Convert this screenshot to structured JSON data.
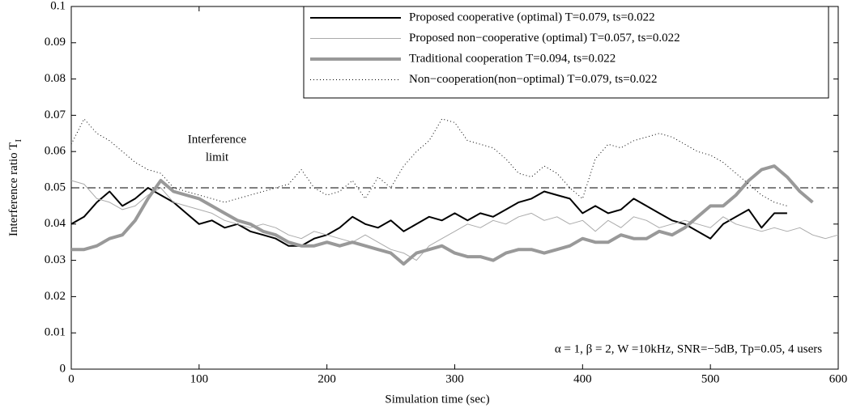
{
  "chart_data": {
    "type": "line",
    "xlabel": "Simulation time (sec)",
    "ylabel": "Interference ratio T",
    "ylabel_subscript": "I",
    "x": [
      0,
      10,
      20,
      30,
      40,
      50,
      60,
      70,
      80,
      90,
      100,
      110,
      120,
      130,
      140,
      150,
      160,
      170,
      180,
      190,
      200,
      210,
      220,
      230,
      240,
      250,
      260,
      270,
      280,
      290,
      300,
      310,
      320,
      330,
      340,
      350,
      360,
      370,
      380,
      390,
      400,
      410,
      420,
      430,
      440,
      450,
      460,
      470,
      480,
      490,
      500,
      510,
      520,
      530,
      540,
      550,
      560,
      570,
      580,
      590,
      600
    ],
    "xlim": [
      0,
      600
    ],
    "xticks": [
      0,
      100,
      200,
      300,
      400,
      500,
      600
    ],
    "ylim": [
      0,
      0.1
    ],
    "yticks": [
      0,
      0.01,
      0.02,
      0.03,
      0.04,
      0.05,
      0.06,
      0.07,
      0.08,
      0.09,
      0.1
    ],
    "limit": 0.05,
    "annotation": [
      "Interference",
      "limit"
    ],
    "params": "α = 1, β = 2, W =10kHz, SNR=−5dB, Tp=0.05, 4 users",
    "series": [
      {
        "name": "Proposed cooperative (optimal) T=0.079, ts=0.022",
        "color": "#000000",
        "style": "solid",
        "width": 2,
        "values": [
          0.04,
          0.042,
          0.046,
          0.049,
          0.045,
          0.047,
          0.05,
          0.048,
          0.046,
          0.043,
          0.04,
          0.041,
          0.039,
          0.04,
          0.038,
          0.037,
          0.036,
          0.034,
          0.034,
          0.036,
          0.037,
          0.039,
          0.042,
          0.04,
          0.039,
          0.041,
          0.038,
          0.04,
          0.042,
          0.041,
          0.043,
          0.041,
          0.043,
          0.042,
          0.044,
          0.046,
          0.047,
          0.049,
          0.048,
          0.047,
          0.043,
          0.045,
          0.043,
          0.044,
          0.047,
          0.045,
          0.043,
          0.041,
          0.04,
          0.038,
          0.036,
          0.04,
          0.042,
          0.044,
          0.039,
          0.043,
          0.043,
          null,
          null,
          null,
          null
        ]
      },
      {
        "name": "Proposed non−cooperative (optimal) T=0.057, ts=0.022",
        "color": "#aaaaaa",
        "style": "solid",
        "width": 1,
        "values": [
          0.052,
          0.051,
          0.047,
          0.046,
          0.044,
          0.045,
          0.048,
          0.05,
          0.046,
          0.045,
          0.044,
          0.043,
          0.041,
          0.04,
          0.039,
          0.04,
          0.039,
          0.037,
          0.036,
          0.038,
          0.037,
          0.036,
          0.035,
          0.037,
          0.035,
          0.033,
          0.032,
          0.03,
          0.034,
          0.036,
          0.038,
          0.04,
          0.039,
          0.041,
          0.04,
          0.042,
          0.043,
          0.041,
          0.042,
          0.04,
          0.041,
          0.038,
          0.041,
          0.039,
          0.042,
          0.041,
          0.039,
          0.04,
          0.041,
          0.04,
          0.039,
          0.042,
          0.04,
          0.039,
          0.038,
          0.039,
          0.038,
          0.039,
          0.037,
          0.036,
          0.037
        ]
      },
      {
        "name": "Traditional cooperation T=0.094, ts=0.022",
        "color": "#999999",
        "style": "solid",
        "width": 4,
        "values": [
          0.033,
          0.033,
          0.034,
          0.036,
          0.037,
          0.041,
          0.047,
          0.052,
          0.049,
          0.048,
          0.047,
          0.045,
          0.043,
          0.041,
          0.04,
          0.038,
          0.037,
          0.035,
          0.034,
          0.034,
          0.035,
          0.034,
          0.035,
          0.034,
          0.033,
          0.032,
          0.029,
          0.032,
          0.033,
          0.034,
          0.032,
          0.031,
          0.031,
          0.03,
          0.032,
          0.033,
          0.033,
          0.032,
          0.033,
          0.034,
          0.036,
          0.035,
          0.035,
          0.037,
          0.036,
          0.036,
          0.038,
          0.037,
          0.039,
          0.042,
          0.045,
          0.045,
          0.048,
          0.052,
          0.055,
          0.056,
          0.053,
          0.049,
          0.046,
          null,
          null
        ]
      },
      {
        "name": "Non−cooperation(non−optimal) T=0.079, ts=0.022",
        "color": "#000000",
        "style": "dotted",
        "width": 1,
        "values": [
          0.062,
          0.069,
          0.065,
          0.063,
          0.06,
          0.057,
          0.055,
          0.054,
          0.05,
          0.049,
          0.048,
          0.047,
          0.046,
          0.047,
          0.048,
          0.049,
          0.05,
          0.051,
          0.055,
          0.05,
          0.048,
          0.049,
          0.052,
          0.047,
          0.053,
          0.05,
          0.056,
          0.06,
          0.063,
          0.069,
          0.068,
          0.063,
          0.062,
          0.061,
          0.058,
          0.054,
          0.053,
          0.056,
          0.054,
          0.05,
          0.047,
          0.058,
          0.062,
          0.061,
          0.063,
          0.064,
          0.065,
          0.064,
          0.062,
          0.06,
          0.059,
          0.057,
          0.054,
          0.051,
          0.048,
          0.046,
          0.045,
          null,
          null,
          null,
          null
        ]
      }
    ]
  }
}
